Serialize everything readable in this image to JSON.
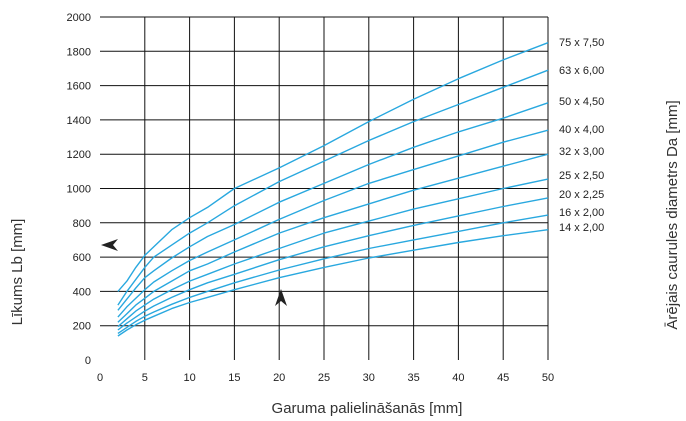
{
  "chart_data": {
    "type": "line",
    "xlabel": "Garuma palielināšanās [mm]",
    "ylabel": "Līkums Lb [mm]",
    "y2label": "Ārējais caurules diametrs Da [mm]",
    "xlim": [
      0,
      50
    ],
    "ylim": [
      0,
      2000
    ],
    "x_ticks": [
      0,
      5,
      10,
      15,
      20,
      25,
      30,
      35,
      40,
      45,
      50
    ],
    "y_ticks": [
      0,
      200,
      400,
      600,
      800,
      1000,
      1200,
      1400,
      1600,
      1800,
      2000
    ],
    "grid": true,
    "line_color": "#29a8df",
    "series": [
      {
        "name": "75 x 7,50",
        "x": [
          2,
          3,
          4,
          5,
          6,
          8,
          10,
          12,
          15,
          20,
          25,
          30,
          35,
          40,
          45,
          50
        ],
        "y": [
          400,
          460,
          540,
          610,
          660,
          760,
          830,
          890,
          1000,
          1120,
          1250,
          1390,
          1520,
          1640,
          1750,
          1850
        ]
      },
      {
        "name": "63 x 6,00",
        "x": [
          2,
          3,
          4,
          5,
          6,
          8,
          10,
          12,
          15,
          20,
          25,
          30,
          35,
          40,
          45,
          50
        ],
        "y": [
          320,
          400,
          470,
          540,
          600,
          670,
          740,
          800,
          900,
          1040,
          1160,
          1280,
          1390,
          1490,
          1590,
          1690
        ]
      },
      {
        "name": "50 x 4,50",
        "x": [
          2,
          3,
          4,
          5,
          6,
          8,
          10,
          12,
          15,
          20,
          25,
          30,
          35,
          40,
          45,
          50
        ],
        "y": [
          290,
          355,
          420,
          480,
          520,
          595,
          660,
          720,
          790,
          920,
          1030,
          1140,
          1240,
          1330,
          1410,
          1500
        ]
      },
      {
        "name": "40 x 4,00",
        "x": [
          2,
          3,
          4,
          5,
          6,
          8,
          10,
          12,
          15,
          20,
          25,
          30,
          35,
          40,
          45,
          50
        ],
        "y": [
          250,
          310,
          360,
          410,
          455,
          520,
          580,
          630,
          700,
          820,
          930,
          1030,
          1110,
          1190,
          1270,
          1340
        ]
      },
      {
        "name": "32 x 3,00",
        "x": [
          2,
          3,
          4,
          5,
          6,
          8,
          10,
          12,
          15,
          20,
          25,
          30,
          35,
          40,
          45,
          50
        ],
        "y": [
          220,
          270,
          320,
          360,
          400,
          460,
          520,
          560,
          630,
          740,
          830,
          910,
          990,
          1060,
          1130,
          1200
        ]
      },
      {
        "name": "25 x 2,50",
        "x": [
          2,
          3,
          4,
          5,
          6,
          8,
          10,
          12,
          15,
          20,
          25,
          30,
          35,
          40,
          45,
          50
        ],
        "y": [
          195,
          240,
          285,
          320,
          355,
          410,
          460,
          500,
          560,
          650,
          740,
          810,
          880,
          940,
          1000,
          1055
        ]
      },
      {
        "name": "20 x 2,25",
        "x": [
          2,
          3,
          4,
          5,
          6,
          8,
          10,
          12,
          15,
          20,
          25,
          30,
          35,
          40,
          45,
          50
        ],
        "y": [
          175,
          215,
          250,
          285,
          315,
          365,
          410,
          450,
          500,
          585,
          660,
          725,
          785,
          840,
          895,
          945
        ]
      },
      {
        "name": "16 x 2,00",
        "x": [
          2,
          3,
          4,
          5,
          6,
          8,
          10,
          12,
          15,
          20,
          25,
          30,
          35,
          40,
          45,
          50
        ],
        "y": [
          155,
          190,
          225,
          255,
          280,
          325,
          365,
          400,
          450,
          525,
          590,
          650,
          700,
          750,
          800,
          845
        ]
      },
      {
        "name": "14 x 2,00",
        "x": [
          2,
          3,
          4,
          5,
          6,
          8,
          10,
          12,
          15,
          20,
          25,
          30,
          35,
          40,
          45,
          50
        ],
        "y": [
          140,
          175,
          205,
          232,
          255,
          300,
          335,
          365,
          410,
          480,
          540,
          595,
          640,
          685,
          725,
          760
        ]
      }
    ]
  }
}
